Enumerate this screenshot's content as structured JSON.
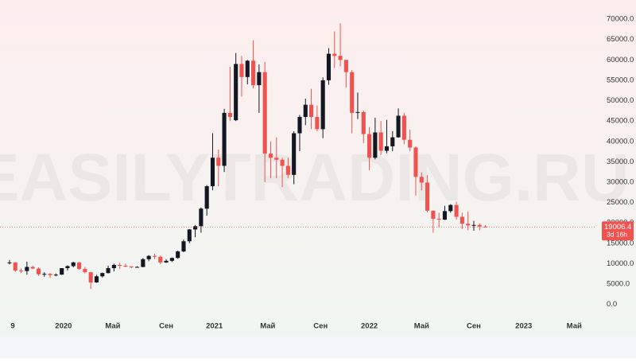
{
  "chart_data": {
    "type": "candlestick",
    "watermark": "EASILYTRADING.RU",
    "open": [
      10300,
      10300,
      8300,
      8200,
      9200,
      8800,
      7400,
      7500,
      7200,
      7300,
      8900,
      9400,
      10300,
      8700,
      7900,
      5400,
      6900,
      7700,
      8900,
      9700,
      9500,
      9300,
      9100,
      9200,
      11100,
      11900,
      11700,
      10300,
      10700,
      11400,
      13000,
      15500,
      18400,
      19200,
      23500,
      29000,
      36000,
      34000,
      47000,
      45200,
      59000,
      55800,
      59800,
      53800,
      57000,
      37000,
      36000,
      35500,
      34000,
      31800,
      42000,
      46000,
      49000,
      46000,
      43000,
      55000,
      61500,
      61000,
      60000,
      57000,
      47000,
      47200,
      41800,
      36000,
      42200,
      37700,
      38800,
      41000,
      46300,
      40400,
      38500,
      31300,
      29900,
      23000,
      21000,
      20800,
      22900,
      24400,
      21500,
      19800,
      19400,
      19500,
      19100
    ],
    "high": [
      10900,
      10400,
      8800,
      10500,
      9500,
      9100,
      7900,
      7700,
      7600,
      8900,
      9600,
      10500,
      10400,
      9200,
      8000,
      7300,
      7800,
      9500,
      10000,
      10200,
      10000,
      9400,
      9400,
      11400,
      12100,
      12400,
      12000,
      11100,
      11500,
      13200,
      15900,
      18500,
      19500,
      23800,
      29300,
      42000,
      38000,
      48000,
      58300,
      61700,
      61000,
      60000,
      64800,
      58900,
      59500,
      40000,
      41000,
      36000,
      36000,
      42500,
      46500,
      50500,
      52900,
      48800,
      55700,
      62900,
      67000,
      69000,
      60000,
      57500,
      52000,
      47600,
      43500,
      45800,
      45000,
      45300,
      42500,
      48100,
      47000,
      42900,
      38800,
      32400,
      31700,
      23000,
      22500,
      24200,
      24600,
      25200,
      22500,
      22800,
      20500,
      19900,
      19500
    ],
    "low": [
      9800,
      8000,
      7700,
      7300,
      8700,
      7000,
      6800,
      6500,
      6900,
      7300,
      8300,
      9100,
      8500,
      7600,
      3800,
      5300,
      6600,
      7600,
      8100,
      8700,
      9100,
      8900,
      9000,
      9100,
      10600,
      11100,
      9900,
      10200,
      10400,
      11200,
      12800,
      15000,
      16500,
      17600,
      21800,
      28000,
      29000,
      32500,
      45000,
      45000,
      51000,
      54000,
      53000,
      47000,
      30000,
      31000,
      31000,
      28800,
      31000,
      29500,
      37600,
      44000,
      43000,
      42500,
      40800,
      53900,
      58000,
      58400,
      53200,
      42000,
      45500,
      39600,
      32900,
      35600,
      36700,
      37100,
      37600,
      40900,
      39300,
      37600,
      26700,
      28000,
      22600,
      17600,
      18900,
      20700,
      22500,
      20800,
      18500,
      18200,
      18100,
      18200,
      18900
    ],
    "close": [
      10300,
      8300,
      8200,
      9200,
      8800,
      7400,
      7500,
      7200,
      7300,
      8900,
      9400,
      10300,
      8700,
      7900,
      5400,
      6900,
      7700,
      8900,
      9700,
      9500,
      9300,
      9100,
      9200,
      11100,
      11900,
      11700,
      10300,
      10700,
      11400,
      13000,
      15500,
      18400,
      19200,
      23500,
      29000,
      36000,
      34000,
      47000,
      46000,
      59000,
      55800,
      59800,
      53800,
      57000,
      37000,
      36000,
      35500,
      34000,
      31800,
      42000,
      46000,
      49000,
      46000,
      43000,
      55000,
      61500,
      61000,
      60000,
      57000,
      47000,
      47200,
      41800,
      36000,
      42200,
      37700,
      38800,
      41000,
      46300,
      40400,
      38500,
      31300,
      29900,
      23000,
      21000,
      20800,
      22900,
      24400,
      21500,
      19800,
      19400,
      19500,
      19100,
      19006.4
    ],
    "up_color": "#131722",
    "down_color": "#ef5350",
    "last_price": 19006.4,
    "countdown": "3d 16h",
    "ylim": [
      -3000,
      74700
    ],
    "yticks": [
      {
        "value": 0,
        "label": "0.0"
      },
      {
        "value": 5000,
        "label": "5000.0"
      },
      {
        "value": 10000,
        "label": "10000.0"
      },
      {
        "value": 15000,
        "label": "15000.0"
      },
      {
        "value": 20000,
        "label": "20000.0"
      },
      {
        "value": 25000,
        "label": "25000.0"
      },
      {
        "value": 30000,
        "label": "30000.0"
      },
      {
        "value": 35000,
        "label": "35000.0"
      },
      {
        "value": 40000,
        "label": "40000.0"
      },
      {
        "value": 45000,
        "label": "45000.0"
      },
      {
        "value": 50000,
        "label": "50000.0"
      },
      {
        "value": 55000,
        "label": "55000.0"
      },
      {
        "value": 60000,
        "label": "60000.0"
      },
      {
        "value": 65000,
        "label": "65000.0"
      },
      {
        "value": 70000,
        "label": "70000.0"
      }
    ],
    "xlim": [
      -1.64,
      101.1
    ],
    "xticks": [
      {
        "value": 0.55,
        "label": "9"
      },
      {
        "value": 9.3,
        "label": "2020"
      },
      {
        "value": 17.8,
        "label": "Май"
      },
      {
        "value": 27,
        "label": "Сен"
      },
      {
        "value": 35.3,
        "label": "2021"
      },
      {
        "value": 44.5,
        "label": "Май"
      },
      {
        "value": 53.6,
        "label": "Сен"
      },
      {
        "value": 62,
        "label": "2022"
      },
      {
        "value": 71,
        "label": "Май"
      },
      {
        "value": 80,
        "label": "Сен"
      },
      {
        "value": 88.6,
        "label": "2023"
      },
      {
        "value": 97.3,
        "label": "Май"
      }
    ],
    "grid": false
  }
}
